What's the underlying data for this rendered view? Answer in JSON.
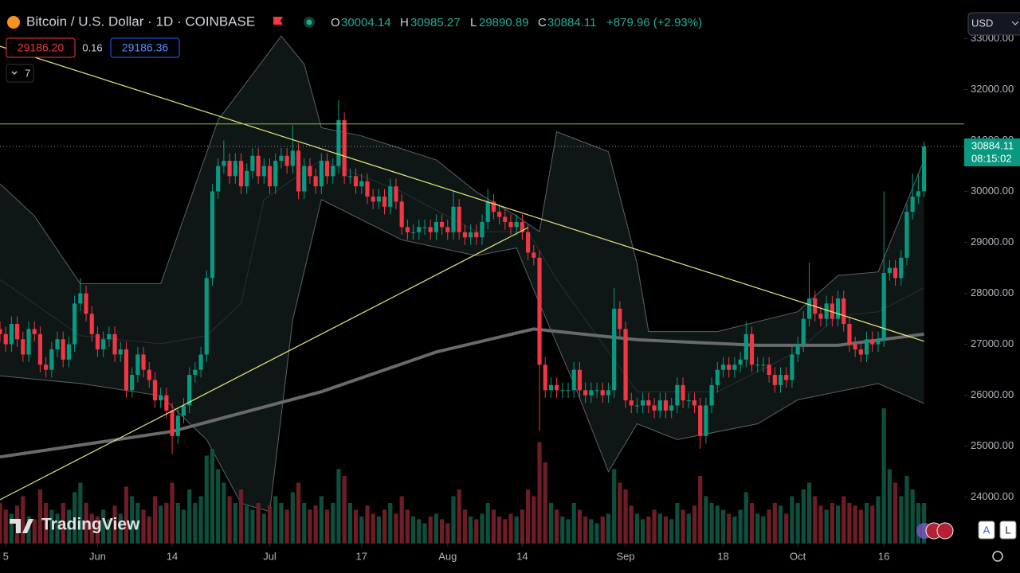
{
  "header": {
    "symbol": "Bitcoin / U.S. Dollar · 1D · COINBASE",
    "ohlc_labels": [
      "O",
      "H",
      "L",
      "C"
    ],
    "change": "+879.96 (+2.93%)",
    "sell": "29186.20",
    "spread": "0.16",
    "buy": "29186.36",
    "indicators_count": "7",
    "currency": "USD",
    "countdown": "08:15:02",
    "brand": "TradingView",
    "buttons": [
      "A",
      "L"
    ]
  },
  "chart_data": {
    "type": "candlestick",
    "x": [
      -17,
      -16,
      -15,
      -14,
      -13,
      -12,
      -11,
      -10,
      -9,
      -8,
      -7,
      -6,
      -5,
      -4,
      -3,
      -2,
      -1,
      0,
      1,
      2,
      3,
      4,
      5,
      6,
      7,
      8,
      9,
      10,
      11,
      12,
      13,
      14,
      15,
      16,
      17,
      18,
      19,
      20,
      21,
      22,
      23,
      24,
      25,
      26,
      27,
      28,
      29,
      30,
      31,
      32,
      33,
      34,
      35,
      36,
      37,
      38,
      39,
      40,
      41,
      42,
      43,
      44,
      45,
      46,
      47,
      48,
      49,
      50,
      51,
      52,
      53,
      54,
      55,
      56,
      57,
      58,
      59,
      60,
      61,
      62,
      63,
      64,
      65,
      66,
      67,
      68,
      69,
      70,
      71,
      72,
      73,
      74,
      75,
      76,
      77,
      78,
      79,
      80,
      81,
      82,
      83,
      84,
      85,
      86,
      87,
      88,
      89,
      90,
      91,
      92,
      93,
      94,
      95,
      96,
      97,
      98,
      99,
      100,
      101,
      102,
      103,
      104,
      105,
      106,
      107,
      108,
      109,
      110,
      111,
      112,
      113,
      114,
      115,
      116,
      117,
      118,
      119,
      120,
      121,
      122,
      123,
      124,
      125,
      126,
      127,
      128,
      129,
      130,
      131,
      132,
      133,
      134,
      135,
      136,
      137,
      138,
      139,
      140,
      141,
      142,
      143,
      144
    ],
    "open": [
      27300,
      27200,
      27000,
      27400,
      27100,
      26800,
      27300,
      27200,
      26600,
      26500,
      26900,
      27100,
      26700,
      27000,
      27800,
      28000,
      27600,
      27200,
      26900,
      27100,
      27200,
      26800,
      26900,
      26100,
      26400,
      26800,
      26500,
      26300,
      25900,
      26000,
      25700,
      25200,
      25600,
      25800,
      26400,
      26500,
      26800,
      28300,
      30000,
      30500,
      30600,
      30300,
      30600,
      30100,
      30400,
      30700,
      30300,
      30500,
      30100,
      30600,
      30700,
      30500,
      30800,
      30000,
      30500,
      30300,
      30100,
      30600,
      30300,
      30500,
      31400,
      30300,
      30300,
      30100,
      30200,
      29900,
      29800,
      29900,
      29700,
      30100,
      29800,
      29300,
      29200,
      29200,
      29300,
      29300,
      29200,
      29400,
      29300,
      29200,
      29700,
      29200,
      29100,
      29200,
      29100,
      29400,
      29800,
      29600,
      29500,
      29400,
      29300,
      29400,
      29200,
      28800,
      28700,
      26600,
      26100,
      26200,
      26100,
      26100,
      26100,
      26500,
      26100,
      26000,
      26100,
      26100,
      26000,
      26100,
      27700,
      27300,
      25900,
      25800,
      25800,
      25900,
      25800,
      25700,
      25900,
      25700,
      25800,
      26200,
      25900,
      25900,
      25800,
      25200,
      25800,
      26200,
      26500,
      26600,
      26500,
      26600,
      26700,
      27200,
      26600,
      26600,
      26600,
      26400,
      26200,
      26400,
      26300,
      26800,
      27000,
      27500,
      27900,
      27600,
      27500,
      27800,
      27500,
      27900,
      27400,
      27000,
      26900,
      26800,
      27100,
      27000,
      27100,
      28400,
      28500,
      28300,
      28700,
      29600,
      29900,
      30004.14
    ],
    "high": [
      27450,
      27350,
      27550,
      27550,
      27250,
      27450,
      27450,
      27350,
      26750,
      27050,
      27250,
      27250,
      27150,
      27950,
      28300,
      28150,
      27750,
      27350,
      27250,
      27350,
      27350,
      27050,
      27050,
      26550,
      26950,
      26950,
      26650,
      26450,
      26150,
      26150,
      25850,
      25750,
      25950,
      26550,
      26650,
      26950,
      28450,
      30150,
      30650,
      31000,
      30750,
      30750,
      30750,
      30550,
      30850,
      30850,
      30650,
      30650,
      30750,
      30850,
      30850,
      31300,
      30950,
      30650,
      30650,
      30450,
      30750,
      30750,
      30650,
      31800,
      31550,
      30450,
      30450,
      30350,
      30350,
      30050,
      30050,
      30050,
      30250,
      30250,
      29950,
      29450,
      29350,
      29450,
      29450,
      29450,
      29550,
      29550,
      29450,
      30000,
      29850,
      29350,
      29350,
      29350,
      29550,
      30050,
      29950,
      29750,
      29650,
      29550,
      29550,
      29550,
      29350,
      28950,
      28850,
      26750,
      26350,
      26350,
      26250,
      26250,
      26650,
      26650,
      26250,
      26250,
      26250,
      26250,
      26250,
      28100,
      27850,
      27450,
      26050,
      25950,
      26050,
      26050,
      25950,
      26050,
      26050,
      25950,
      26350,
      26350,
      26050,
      26050,
      25950,
      25950,
      26350,
      26650,
      26750,
      26750,
      26750,
      26850,
      27450,
      27350,
      26750,
      26750,
      26750,
      26550,
      26550,
      26550,
      26950,
      27150,
      27650,
      28600,
      28050,
      27750,
      27950,
      27950,
      28050,
      28050,
      27550,
      27150,
      27050,
      27250,
      27250,
      27250,
      30000,
      28650,
      28650,
      28850,
      29750,
      30350,
      30350,
      30985.27
    ],
    "low": [
      27050,
      26850,
      26850,
      26950,
      26650,
      26650,
      27050,
      26450,
      26350,
      26350,
      26750,
      26550,
      26550,
      26850,
      27650,
      27450,
      27050,
      26750,
      26750,
      26950,
      26650,
      26650,
      25950,
      25950,
      26250,
      26350,
      26150,
      25750,
      25750,
      25550,
      24850,
      25050,
      25450,
      25650,
      26250,
      26350,
      26650,
      28150,
      29850,
      30350,
      30150,
      30150,
      29950,
      29950,
      30250,
      30150,
      30150,
      29950,
      29950,
      30450,
      30350,
      30350,
      29850,
      29850,
      30150,
      29950,
      29950,
      30150,
      30150,
      30350,
      30150,
      30150,
      29950,
      29950,
      29750,
      29650,
      29650,
      29550,
      29550,
      29650,
      29150,
      29050,
      29050,
      29050,
      29150,
      29050,
      29050,
      29150,
      29050,
      29050,
      29050,
      28950,
      28950,
      28950,
      28950,
      29250,
      29450,
      29350,
      29250,
      29150,
      29150,
      29050,
      28650,
      28550,
      25300,
      25950,
      25950,
      25950,
      25950,
      25950,
      25950,
      25950,
      25850,
      25850,
      25950,
      25850,
      25850,
      25950,
      27150,
      25750,
      25650,
      25650,
      25650,
      25650,
      25550,
      25550,
      25550,
      25550,
      25650,
      25750,
      25750,
      25650,
      24950,
      25050,
      25650,
      26050,
      26350,
      26350,
      26350,
      26450,
      26550,
      26450,
      26450,
      26450,
      26250,
      26050,
      26050,
      26150,
      26150,
      26650,
      26850,
      27350,
      27450,
      27350,
      27350,
      27350,
      27350,
      27250,
      26850,
      26750,
      26650,
      26650,
      26850,
      26850,
      26950,
      28250,
      28150,
      28150,
      28550,
      29450,
      29750,
      29890.89
    ],
    "close": [
      27200,
      27000,
      27400,
      27100,
      26800,
      27300,
      27200,
      26600,
      26500,
      26900,
      27100,
      26700,
      27000,
      27800,
      28000,
      27600,
      27200,
      26900,
      27100,
      27200,
      26800,
      26900,
      26100,
      26400,
      26800,
      26500,
      26300,
      25900,
      26000,
      25700,
      25200,
      25600,
      25800,
      26400,
      26500,
      26800,
      28300,
      30000,
      30500,
      30600,
      30300,
      30600,
      30100,
      30400,
      30700,
      30300,
      30500,
      30100,
      30600,
      30700,
      30500,
      30800,
      30000,
      30500,
      30300,
      30100,
      30600,
      30300,
      30500,
      31400,
      30300,
      30300,
      30100,
      30200,
      29900,
      29800,
      29900,
      29700,
      30100,
      29800,
      29300,
      29200,
      29200,
      29300,
      29300,
      29200,
      29400,
      29300,
      29200,
      29700,
      29200,
      29100,
      29200,
      29100,
      29400,
      29800,
      29600,
      29500,
      29400,
      29300,
      29400,
      29200,
      28800,
      28700,
      26600,
      26100,
      26200,
      26100,
      26100,
      26100,
      26500,
      26100,
      26000,
      26100,
      26100,
      26000,
      26100,
      27700,
      27300,
      25900,
      25800,
      25800,
      25900,
      25800,
      25700,
      25900,
      25700,
      25800,
      26200,
      25900,
      25900,
      25800,
      25200,
      25800,
      26200,
      26500,
      26600,
      26500,
      26600,
      26700,
      27200,
      26600,
      26600,
      26600,
      26400,
      26200,
      26400,
      26300,
      26800,
      27000,
      27500,
      27900,
      27600,
      27500,
      27800,
      27500,
      27900,
      27400,
      27000,
      26900,
      26800,
      27100,
      27000,
      27100,
      28400,
      28500,
      28300,
      28700,
      29600,
      29900,
      30004.14,
      30884.11
    ],
    "volume": [
      30,
      25,
      22,
      28,
      35,
      20,
      18,
      40,
      30,
      25,
      22,
      30,
      25,
      38,
      45,
      30,
      22,
      20,
      25,
      18,
      28,
      22,
      42,
      35,
      30,
      25,
      20,
      35,
      28,
      30,
      45,
      30,
      25,
      40,
      30,
      35,
      65,
      70,
      55,
      45,
      35,
      30,
      40,
      28,
      25,
      30,
      22,
      28,
      35,
      30,
      25,
      38,
      45,
      30,
      25,
      28,
      35,
      25,
      30,
      55,
      50,
      30,
      25,
      20,
      28,
      22,
      20,
      25,
      30,
      22,
      35,
      25,
      20,
      18,
      15,
      20,
      22,
      18,
      15,
      35,
      40,
      25,
      20,
      18,
      22,
      30,
      25,
      20,
      18,
      22,
      20,
      25,
      40,
      35,
      75,
      60,
      30,
      25,
      20,
      18,
      30,
      25,
      20,
      18,
      15,
      20,
      22,
      55,
      45,
      40,
      28,
      22,
      18,
      20,
      25,
      22,
      20,
      18,
      30,
      25,
      22,
      28,
      50,
      35,
      30,
      28,
      25,
      22,
      20,
      25,
      38,
      30,
      22,
      20,
      25,
      30,
      28,
      22,
      35,
      30,
      40,
      45,
      35,
      28,
      25,
      30,
      28,
      35,
      30,
      28,
      25,
      30,
      28,
      35,
      100,
      55,
      45,
      35,
      50,
      40,
      30,
      30
    ],
    "vlim": [
      0,
      100
    ],
    "xlim": [
      -17,
      151
    ],
    "ylim": [
      23090,
      33757
    ],
    "yticks": [
      {
        "value": 24000,
        "label": "24000.00"
      },
      {
        "value": 25000,
        "label": "25000.00"
      },
      {
        "value": 26000,
        "label": "26000.00"
      },
      {
        "value": 27000,
        "label": "27000.00"
      },
      {
        "value": 28000,
        "label": "28000.00"
      },
      {
        "value": 29000,
        "label": "29000.00"
      },
      {
        "value": 30000,
        "label": "30000.00"
      },
      {
        "value": 31000,
        "label": "31000.00"
      },
      {
        "value": 32000,
        "label": "32000.00"
      },
      {
        "value": 33000,
        "label": "33000.00"
      }
    ],
    "xticks": [
      {
        "value": -16,
        "label": "5"
      },
      {
        "value": 0,
        "label": "Jun"
      },
      {
        "value": 13,
        "label": "14"
      },
      {
        "value": 30,
        "label": "Jul"
      },
      {
        "value": 46,
        "label": "17"
      },
      {
        "value": 61,
        "label": "Aug"
      },
      {
        "value": 74,
        "label": "14"
      },
      {
        "value": 92,
        "label": "Sep"
      },
      {
        "value": 109,
        "label": "18"
      },
      {
        "value": 122,
        "label": "Oct"
      },
      {
        "value": 137,
        "label": "16"
      }
    ],
    "colors": {
      "up": "#089981",
      "down": "#f23645",
      "volume_up": "#0d4f3c",
      "volume_down": "#6e1d26"
    },
    "bollinger": {
      "color": "#5d606b",
      "fill": "#0f1a17",
      "upper": {
        "x": [
          -17,
          -11,
          -3,
          11,
          21,
          32,
          36,
          39,
          46,
          59,
          66,
          73,
          77,
          80,
          89,
          94,
          96,
          108,
          122,
          129,
          136,
          144
        ],
        "values": [
          30150,
          29520,
          28190,
          28190,
          31400,
          33050,
          32500,
          31250,
          31090,
          30620,
          29990,
          29520,
          29210,
          31170,
          30780,
          28580,
          27250,
          27250,
          27640,
          28350,
          28420,
          30620
        ]
      },
      "lower": {
        "x": [
          -17,
          -3,
          11,
          19,
          25,
          30,
          34,
          39,
          53,
          66,
          73,
          77,
          83,
          89,
          94,
          101,
          115,
          122,
          136,
          144
        ],
        "values": [
          26380,
          26230,
          25990,
          25130,
          23880,
          23720,
          27480,
          29840,
          29050,
          28740,
          28890,
          27800,
          26230,
          24500,
          25440,
          25130,
          25440,
          25910,
          26230,
          25840
        ]
      },
      "basis": {
        "x": [
          -17,
          -3,
          11,
          19,
          25,
          29,
          39,
          53,
          66,
          75,
          80,
          87,
          94,
          108,
          122,
          129,
          136,
          144
        ],
        "values": [
          28270,
          27170,
          27010,
          27170,
          27800,
          29840,
          30620,
          29990,
          29210,
          29210,
          28270,
          27170,
          26070,
          26070,
          26860,
          27560,
          27640,
          28110
        ]
      }
    },
    "moving_average": {
      "color": "#6a6a6a",
      "x": [
        -17,
        13,
        39,
        59,
        76,
        94,
        115,
        129,
        144
      ],
      "values": [
        24790,
        25290,
        26070,
        26850,
        27300,
        27090,
        26980,
        26980,
        27200
      ]
    },
    "trend_lines": [
      {
        "color": "#e8e87a",
        "x": [
          -17,
          144
        ],
        "values": [
          32850,
          27060
        ]
      },
      {
        "color": "#e8e87a",
        "x": [
          -17,
          75
        ],
        "values": [
          23950,
          29290
        ]
      }
    ],
    "horizontal_line": {
      "color": "#8bc34a",
      "value": 31325
    }
  }
}
